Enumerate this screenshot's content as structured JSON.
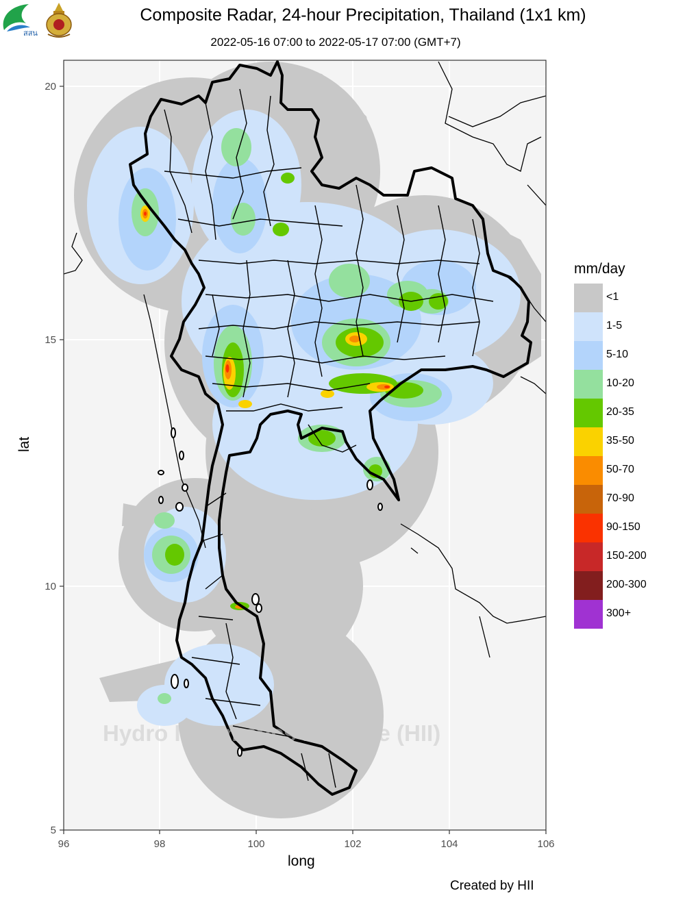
{
  "header": {
    "title": "Composite Radar, 24-hour Precipitation, Thailand (1x1 km)",
    "subtitle": "2022-05-16 07:00 to 2022-05-17 07:00 (GMT+7)",
    "logo_text": "สสน"
  },
  "axes": {
    "xlabel": "long",
    "ylabel": "lat",
    "x_ticks": [
      96,
      98,
      100,
      102,
      104,
      106
    ],
    "y_ticks": [
      5,
      10,
      15,
      20
    ],
    "xlim": [
      96,
      106
    ],
    "ylim": [
      5,
      20.5
    ]
  },
  "legend": {
    "title": "mm/day",
    "items": [
      {
        "label": "<1",
        "color": "#c8c8c8"
      },
      {
        "label": "1-5",
        "color": "#cfe3fb"
      },
      {
        "label": "5-10",
        "color": "#b3d4fb"
      },
      {
        "label": "10-20",
        "color": "#94e09e"
      },
      {
        "label": "20-35",
        "color": "#64c800"
      },
      {
        "label": "35-50",
        "color": "#fad200"
      },
      {
        "label": "50-70",
        "color": "#fa8c00"
      },
      {
        "label": "70-90",
        "color": "#c8640a"
      },
      {
        "label": "90-150",
        "color": "#fa3200"
      },
      {
        "label": "150-200",
        "color": "#c82828"
      },
      {
        "label": "200-300",
        "color": "#821e1e"
      },
      {
        "label": "300+",
        "color": "#a032d2"
      }
    ]
  },
  "watermark": "Hydro Informatics Institute (HII)",
  "credit": "Created by HII"
}
